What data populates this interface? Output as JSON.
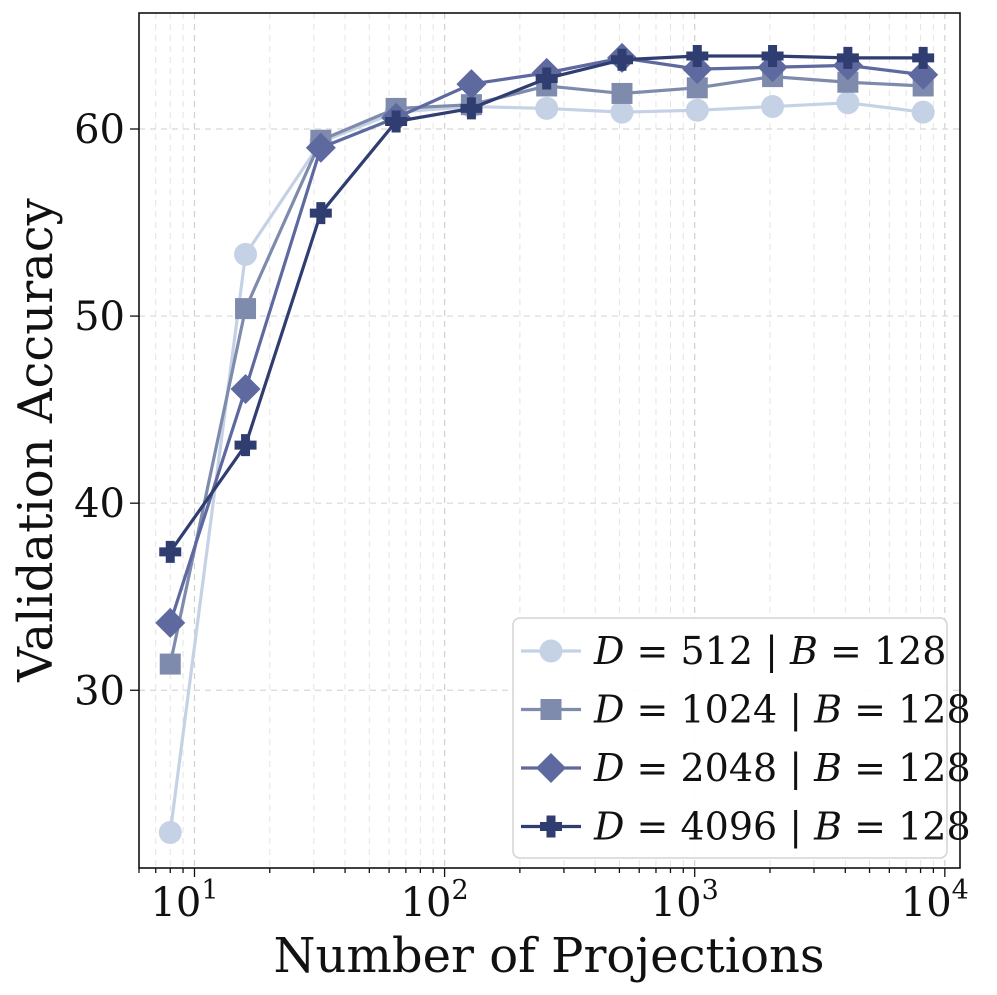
{
  "chart_data": {
    "type": "line",
    "title": "",
    "xlabel": "Number of Projections",
    "ylabel": "Validation Accuracy",
    "xscale": "log",
    "xlim": [
      6,
      11500
    ],
    "ylim": [
      20.5,
      66.2
    ],
    "grid": true,
    "legend_position": "bottom-right",
    "x": [
      8,
      16,
      32,
      64,
      128,
      256,
      512,
      1024,
      2048,
      4096,
      8192
    ],
    "x_ticks": [
      {
        "value": 10,
        "base": "10",
        "exp": "1"
      },
      {
        "value": 100,
        "base": "10",
        "exp": "2"
      },
      {
        "value": 1000,
        "base": "10",
        "exp": "3"
      },
      {
        "value": 10000,
        "base": "10",
        "exp": "4"
      }
    ],
    "y_ticks": [
      {
        "value": 30,
        "label": "30"
      },
      {
        "value": 40,
        "label": "40"
      },
      {
        "value": 50,
        "label": "50"
      },
      {
        "value": 60,
        "label": "60"
      }
    ],
    "series": [
      {
        "name": "D = 512 | B = 128",
        "d_label": "D",
        "d_value": "512",
        "b_label": "B",
        "b_value": "128",
        "color": "#c5d2e6",
        "marker": "circle",
        "values": [
          22.4,
          53.3,
          59.3,
          60.9,
          61.2,
          61.1,
          60.9,
          61.0,
          61.2,
          61.4,
          60.9
        ]
      },
      {
        "name": "D = 1024 | B = 128",
        "d_label": "D",
        "d_value": "1024",
        "b_label": "B",
        "b_value": "128",
        "color": "#7f8bad",
        "marker": "square",
        "values": [
          31.4,
          50.4,
          59.4,
          61.1,
          61.3,
          62.3,
          61.9,
          62.2,
          62.8,
          62.5,
          62.3
        ]
      },
      {
        "name": "D = 2048 | B = 128",
        "d_label": "D",
        "d_value": "2048",
        "b_label": "B",
        "b_value": "128",
        "color": "#5d699f",
        "marker": "diamond",
        "values": [
          33.6,
          46.1,
          59.0,
          60.6,
          62.4,
          63.0,
          63.8,
          63.2,
          63.3,
          63.4,
          62.9
        ]
      },
      {
        "name": "D = 4096 | B = 128",
        "d_label": "D",
        "d_value": "4096",
        "b_label": "B",
        "b_value": "128",
        "color": "#2f3d70",
        "marker": "plus",
        "values": [
          37.4,
          43.1,
          55.5,
          60.4,
          61.1,
          62.7,
          63.7,
          63.9,
          63.9,
          63.8,
          63.8
        ]
      }
    ]
  }
}
